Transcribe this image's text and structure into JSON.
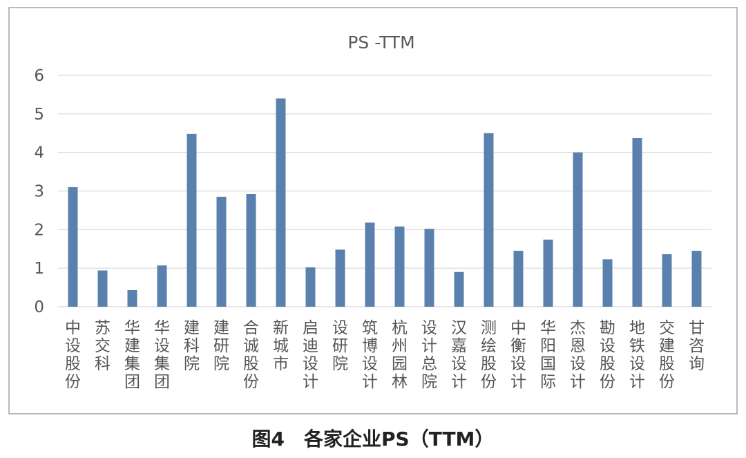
{
  "chart_data": {
    "type": "bar",
    "title": "PS -TTM",
    "categories": [
      "中设股份",
      "苏交科",
      "华建集团",
      "华设集团",
      "建科院",
      "建研院",
      "合诚股份",
      "新城市",
      "启迪设计",
      "设研院",
      "筑博设计",
      "杭州园林",
      "设计总院",
      "汉嘉设计",
      "测绘股份",
      "中衡设计",
      "华阳国际",
      "杰恩设计",
      "勘设股份",
      "地铁设计",
      "交建股份",
      "甘咨询"
    ],
    "values": [
      3.1,
      0.94,
      0.43,
      1.07,
      4.48,
      2.85,
      2.92,
      5.4,
      1.02,
      1.48,
      2.18,
      2.08,
      2.02,
      0.9,
      4.5,
      1.45,
      1.74,
      4.0,
      1.23,
      4.37,
      1.36,
      1.45
    ],
    "ylim": [
      0,
      6
    ],
    "yticks": [
      "0",
      "1",
      "2",
      "3",
      "4",
      "5",
      "6"
    ],
    "grid": true,
    "bar_color": "#5a80ae"
  },
  "caption": "图4　各家企业PS（TTM）"
}
